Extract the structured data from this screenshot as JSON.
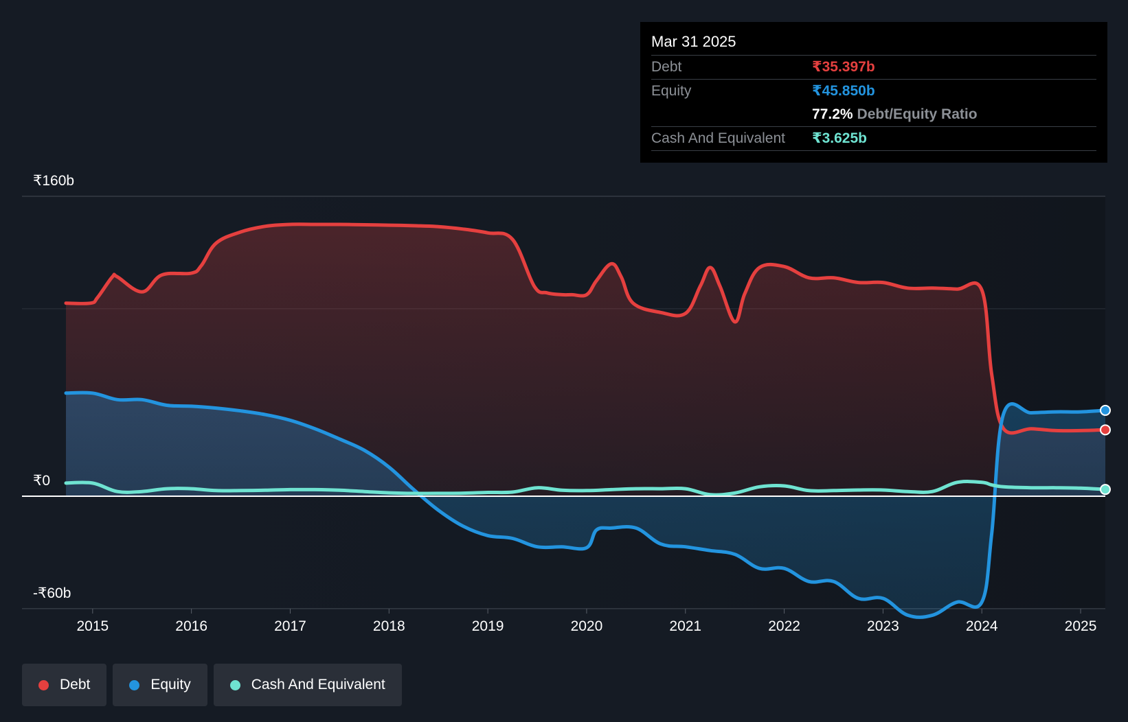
{
  "tooltip": {
    "date": "Mar 31 2025",
    "rows": {
      "debt": {
        "label": "Debt",
        "value": "₹35.397b"
      },
      "equity": {
        "label": "Equity",
        "value": "₹45.850b"
      },
      "ratio": {
        "value": "77.2%",
        "label": "Debt/Equity Ratio"
      },
      "cash": {
        "label": "Cash And Equivalent",
        "value": "₹3.625b"
      }
    }
  },
  "legend": [
    {
      "label": "Debt",
      "color": "#e5403f"
    },
    {
      "label": "Equity",
      "color": "#2394df"
    },
    {
      "label": "Cash And Equivalent",
      "color": "#6fe3d1"
    }
  ],
  "colors": {
    "debt": "#e5403f",
    "equity": "#2394df",
    "cash": "#6fe3d1",
    "background": "#151b24"
  },
  "chart_data": {
    "type": "area",
    "y_tick_labels": [
      "₹160b",
      "₹0",
      "-₹60b"
    ],
    "ylim": [
      -60,
      160
    ],
    "xlim": [
      2014.73,
      2025.25
    ],
    "x_ticks": [
      2015,
      2016,
      2017,
      2018,
      2019,
      2020,
      2021,
      2022,
      2023,
      2024,
      2025
    ],
    "series": [
      {
        "name": "Debt",
        "x": [
          2014.73,
          2014.98,
          2015.05,
          2015.2,
          2015.25,
          2015.5,
          2015.7,
          2016.0,
          2016.1,
          2016.25,
          2016.5,
          2016.75,
          2017.0,
          2017.25,
          2017.5,
          2017.75,
          2018.0,
          2018.25,
          2018.5,
          2018.75,
          2019.0,
          2019.25,
          2019.47,
          2019.6,
          2019.75,
          2019.85,
          2020.0,
          2020.1,
          2020.25,
          2020.35,
          2020.47,
          2020.75,
          2021.0,
          2021.15,
          2021.25,
          2021.35,
          2021.5,
          2021.6,
          2021.75,
          2022.0,
          2022.25,
          2022.5,
          2022.75,
          2023.0,
          2023.25,
          2023.5,
          2023.75,
          2024.0,
          2024.1,
          2024.22,
          2024.5,
          2024.75,
          2025.0,
          2025.25
        ],
        "values": [
          103,
          103,
          106,
          117,
          117,
          109,
          118,
          119,
          123,
          135,
          141,
          144,
          145,
          145,
          145,
          144.8,
          144.6,
          144.3,
          143.8,
          142.5,
          140.5,
          137,
          112,
          108.5,
          107.5,
          107.5,
          107.5,
          115,
          124,
          117,
          103,
          98,
          97.5,
          112,
          122,
          112,
          93,
          108,
          122,
          122.5,
          116.5,
          116.5,
          114,
          114,
          111,
          111,
          110.5,
          110,
          65,
          36,
          36,
          35,
          35,
          35.4
        ]
      },
      {
        "name": "Equity",
        "x": [
          2014.73,
          2015.0,
          2015.25,
          2015.5,
          2015.75,
          2016.0,
          2016.25,
          2016.5,
          2016.75,
          2017.0,
          2017.25,
          2017.5,
          2017.75,
          2018.0,
          2018.25,
          2018.5,
          2018.75,
          2019.0,
          2019.25,
          2019.5,
          2019.75,
          2020.0,
          2020.1,
          2020.25,
          2020.5,
          2020.75,
          2021.0,
          2021.25,
          2021.5,
          2021.75,
          2022.0,
          2022.25,
          2022.5,
          2022.75,
          2023.0,
          2023.25,
          2023.5,
          2023.75,
          2024.0,
          2024.1,
          2024.22,
          2024.5,
          2024.75,
          2025.0,
          2025.25
        ],
        "values": [
          55,
          55,
          51.5,
          51.5,
          48.5,
          48,
          47,
          45.5,
          43.5,
          40.5,
          36,
          30.5,
          24.5,
          15.5,
          3.5,
          -7.5,
          -16,
          -21,
          -22.5,
          -27,
          -27,
          -27.5,
          -18,
          -17,
          -17,
          -25.5,
          -27,
          -29,
          -31,
          -38.5,
          -38.5,
          -45.5,
          -45.5,
          -54.5,
          -54.5,
          -63.5,
          -63.5,
          -56.5,
          -56.5,
          -20,
          44,
          44.5,
          45,
          45,
          45.8
        ]
      },
      {
        "name": "Cash And Equivalent",
        "x": [
          2014.73,
          2015.0,
          2015.25,
          2015.5,
          2015.75,
          2016.0,
          2016.25,
          2016.5,
          2016.75,
          2017.0,
          2017.25,
          2017.5,
          2017.75,
          2018.0,
          2018.25,
          2018.5,
          2018.75,
          2019.0,
          2019.25,
          2019.5,
          2019.75,
          2020.0,
          2020.25,
          2020.5,
          2020.75,
          2021.0,
          2021.25,
          2021.5,
          2021.75,
          2022.0,
          2022.25,
          2022.5,
          2022.75,
          2023.0,
          2023.25,
          2023.5,
          2023.75,
          2024.0,
          2024.1,
          2024.22,
          2024.5,
          2024.75,
          2025.0,
          2025.25
        ],
        "values": [
          7,
          7,
          2.5,
          2.5,
          4,
          4,
          3,
          3,
          3.2,
          3.5,
          3.5,
          3.2,
          2.5,
          1.8,
          1.5,
          1.5,
          1.6,
          2,
          2.2,
          4.5,
          3.2,
          3,
          3.5,
          4,
          4,
          4,
          0.8,
          1.7,
          5,
          5.5,
          3,
          3,
          3.3,
          3.3,
          2.5,
          2.5,
          7.4,
          7.4,
          6,
          5,
          4.5,
          4.5,
          4.3,
          3.6
        ]
      }
    ]
  }
}
